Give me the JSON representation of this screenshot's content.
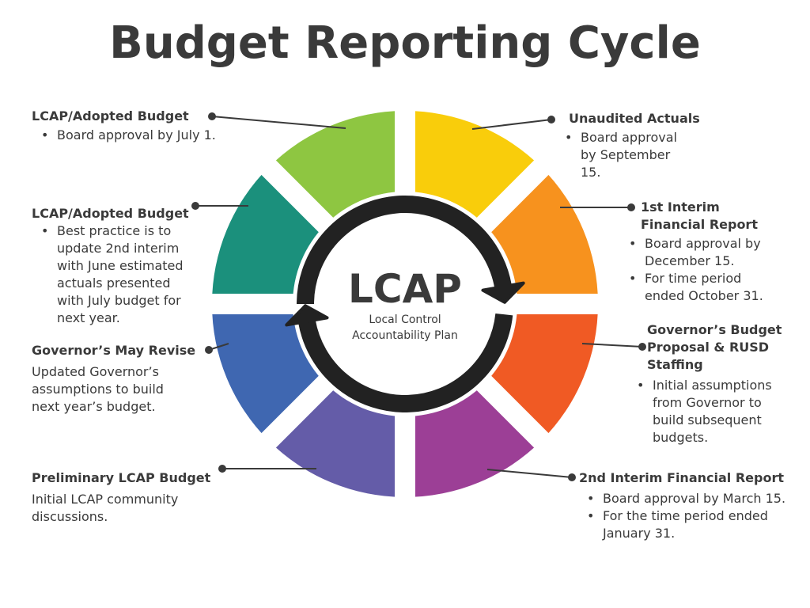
{
  "title": "Budget Reporting Cycle",
  "center": {
    "title": "LCAP",
    "subtitle": "Local Control\nAccountability Plan"
  },
  "segment_colors": [
    "#f9cd0b",
    "#f7921e",
    "#f05a24",
    "#9c3f96",
    "#645ca8",
    "#3f67b1",
    "#1b907c",
    "#8ec641"
  ],
  "arrow_color": "#222222",
  "stages": {
    "adopted_july": {
      "title": "LCAP/Adopted Budget",
      "bullets": [
        "Board approval by July 1."
      ]
    },
    "adopted_best": {
      "title": "LCAP/Adopted Budget",
      "bullets": [
        "Best practice is to\nupdate 2nd interim\nwith June estimated\nactuals presented\nwith July budget for\nnext year."
      ]
    },
    "may_revise": {
      "title": "Governor’s May Revise",
      "text": "Updated Governor’s\nassumptions to build\nnext year’s budget."
    },
    "preliminary": {
      "title": "Preliminary LCAP Budget",
      "text": "Initial LCAP community\ndiscussions."
    },
    "unaudited": {
      "title": "Unaudited Actuals",
      "bullets": [
        "Board approval\nby September\n15."
      ]
    },
    "first_interim": {
      "title": "1st Interim\nFinancial Report",
      "bullets": [
        "Board approval by\nDecember 15.",
        "For time period\nended October 31."
      ]
    },
    "governors_budget": {
      "title": "Governor’s Budget\nProposal & RUSD\nStaffing",
      "bullets": [
        "Initial assumptions\nfrom Governor to\nbuild subsequent\nbudgets."
      ]
    },
    "second_interim": {
      "title": "2nd Interim Financial Report",
      "bullets": [
        "Board approval by March 15.",
        "For the time period ended\nJanuary 31."
      ]
    }
  }
}
